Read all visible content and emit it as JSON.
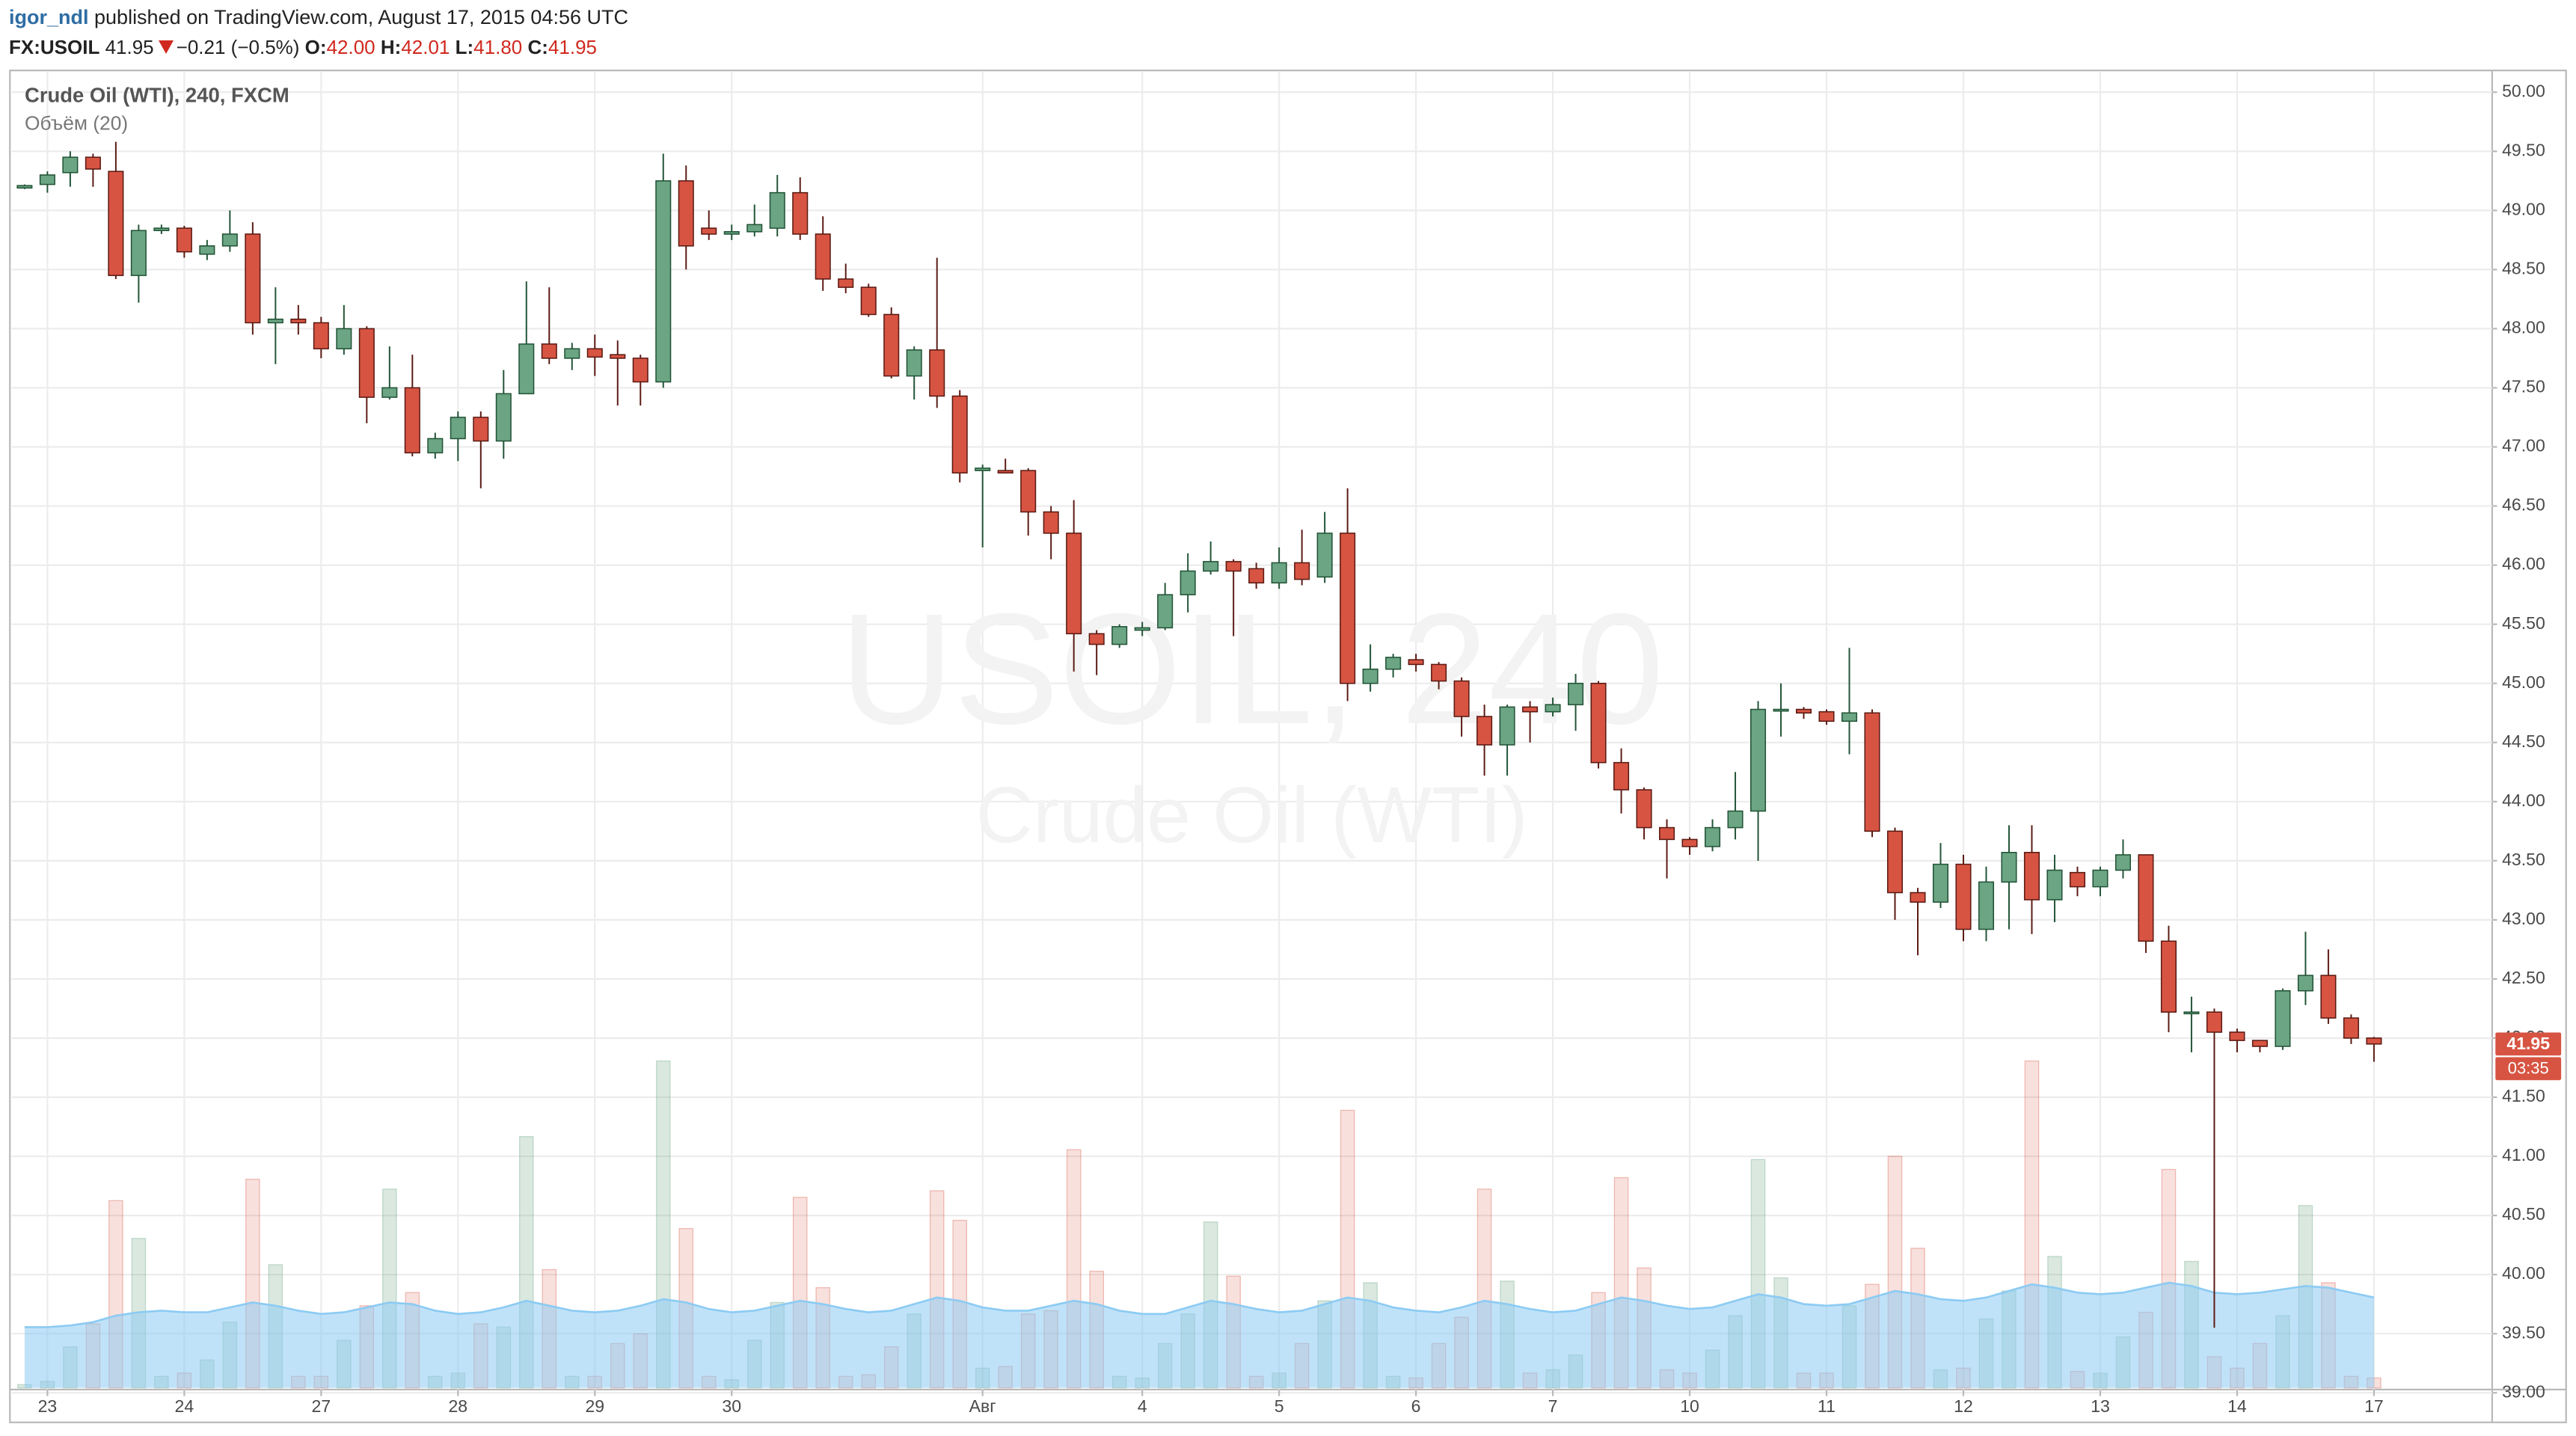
{
  "header": {
    "author": "igor_ndl",
    "published": "published on TradingView.com, August 17, 2015 04:56 UTC",
    "symbol": "FX:USOIL",
    "last": "41.95",
    "change": "−0.21 (−0.5%)",
    "ohlc": [
      {
        "label": "O:",
        "value": "42.00"
      },
      {
        "label": "H:",
        "value": "42.01"
      },
      {
        "label": "L:",
        "value": "41.80"
      },
      {
        "label": "C:",
        "value": "41.95"
      }
    ]
  },
  "chart_data": {
    "type": "candlestick",
    "title": "Crude Oil (WTI), 240, FXCM",
    "volume_label": "Объём (20)",
    "watermark": {
      "symbol": "USOIL, 240",
      "name": "Crude Oil (WTI)"
    },
    "categories": [
      null,
      "23",
      null,
      null,
      null,
      null,
      null,
      "24",
      null,
      null,
      null,
      null,
      null,
      "27",
      null,
      null,
      null,
      null,
      null,
      "28",
      null,
      null,
      null,
      null,
      null,
      "29",
      null,
      null,
      null,
      null,
      null,
      "30",
      null,
      null,
      null,
      null,
      null,
      null,
      null,
      null,
      null,
      null,
      "Авг",
      null,
      null,
      null,
      null,
      null,
      null,
      "4",
      null,
      null,
      null,
      null,
      null,
      "5",
      null,
      null,
      null,
      null,
      null,
      "6",
      null,
      null,
      null,
      null,
      null,
      "7",
      null,
      null,
      null,
      null,
      null,
      "10",
      null,
      null,
      null,
      null,
      null,
      "11",
      null,
      null,
      null,
      null,
      null,
      "12",
      null,
      null,
      null,
      null,
      null,
      "13",
      null,
      null,
      null,
      null,
      null,
      "14",
      null,
      null,
      null,
      null,
      null,
      "17"
    ],
    "open": [
      49.19,
      49.22,
      49.32,
      49.45,
      49.33,
      48.45,
      48.83,
      48.85,
      48.63,
      48.7,
      48.8,
      48.05,
      48.08,
      48.05,
      47.83,
      48.0,
      47.42,
      47.5,
      46.95,
      47.07,
      47.25,
      47.05,
      47.45,
      47.87,
      47.75,
      47.83,
      47.78,
      47.75,
      47.55,
      49.25,
      48.85,
      48.8,
      48.82,
      48.85,
      49.15,
      48.8,
      48.42,
      48.35,
      48.12,
      47.6,
      47.82,
      47.43,
      46.8,
      46.8,
      46.8,
      46.45,
      46.27,
      45.42,
      45.33,
      45.45,
      45.47,
      45.75,
      45.95,
      46.03,
      45.97,
      45.85,
      46.02,
      45.9,
      46.27,
      45.0,
      45.12,
      45.2,
      45.16,
      45.02,
      44.72,
      44.48,
      44.8,
      44.76,
      44.82,
      45.0,
      44.33,
      44.1,
      43.78,
      43.68,
      43.62,
      43.78,
      43.92,
      44.78,
      44.78,
      44.76,
      44.68,
      44.75,
      43.75,
      43.23,
      43.15,
      43.47,
      42.92,
      43.32,
      43.57,
      43.17,
      43.4,
      43.28,
      43.42,
      43.55,
      42.82,
      42.22,
      42.22,
      42.05,
      41.98,
      41.93,
      42.4,
      42.53,
      42.17,
      42.0
    ],
    "high": [
      49.22,
      49.33,
      49.5,
      49.48,
      49.58,
      48.88,
      48.88,
      48.87,
      48.75,
      49.0,
      48.9,
      48.35,
      48.2,
      48.1,
      48.2,
      48.02,
      47.85,
      47.78,
      47.12,
      47.3,
      47.3,
      47.65,
      48.4,
      48.35,
      47.88,
      47.95,
      47.9,
      47.78,
      49.48,
      49.38,
      49.0,
      48.88,
      49.05,
      49.3,
      49.28,
      48.95,
      48.55,
      48.38,
      48.18,
      47.85,
      48.6,
      47.48,
      46.85,
      46.9,
      46.82,
      46.5,
      46.55,
      45.45,
      45.5,
      45.52,
      45.85,
      46.1,
      46.2,
      46.05,
      46.02,
      46.15,
      46.3,
      46.45,
      46.65,
      45.33,
      45.25,
      45.25,
      45.18,
      45.05,
      44.82,
      44.82,
      44.85,
      44.88,
      45.08,
      45.02,
      44.45,
      44.12,
      43.85,
      43.7,
      43.85,
      44.25,
      44.85,
      45.0,
      44.8,
      44.78,
      45.3,
      44.78,
      43.78,
      43.27,
      43.65,
      43.55,
      43.45,
      43.8,
      43.8,
      43.55,
      43.45,
      43.45,
      43.68,
      43.55,
      42.95,
      42.35,
      42.25,
      42.08,
      41.98,
      42.42,
      42.9,
      42.75,
      42.2,
      42.01
    ],
    "low": [
      49.18,
      49.15,
      49.2,
      49.2,
      48.42,
      48.22,
      48.8,
      48.6,
      48.58,
      48.65,
      47.95,
      47.7,
      47.95,
      47.75,
      47.78,
      47.2,
      47.4,
      46.92,
      46.9,
      46.88,
      46.65,
      46.9,
      47.45,
      47.7,
      47.65,
      47.6,
      47.35,
      47.35,
      47.5,
      48.5,
      48.75,
      48.75,
      48.78,
      48.78,
      48.75,
      48.32,
      48.3,
      48.1,
      47.58,
      47.4,
      47.33,
      46.7,
      46.15,
      46.78,
      46.25,
      46.05,
      45.1,
      45.07,
      45.3,
      45.4,
      45.45,
      45.6,
      45.92,
      45.4,
      45.8,
      45.8,
      45.83,
      45.85,
      44.85,
      44.93,
      45.05,
      45.1,
      44.95,
      44.55,
      44.22,
      44.22,
      44.5,
      44.72,
      44.6,
      44.28,
      43.9,
      43.68,
      43.35,
      43.55,
      43.58,
      43.68,
      43.5,
      44.55,
      44.7,
      44.65,
      44.4,
      43.7,
      43.0,
      42.7,
      43.1,
      42.82,
      42.82,
      42.92,
      42.88,
      42.98,
      43.2,
      43.2,
      43.35,
      42.72,
      42.05,
      41.88,
      39.55,
      41.88,
      41.88,
      41.9,
      42.28,
      42.12,
      41.95,
      41.8
    ],
    "close": [
      49.21,
      49.3,
      49.45,
      49.35,
      48.45,
      48.83,
      48.85,
      48.65,
      48.7,
      48.8,
      48.05,
      48.08,
      48.05,
      47.83,
      48.0,
      47.42,
      47.5,
      46.95,
      47.07,
      47.25,
      47.05,
      47.45,
      47.87,
      47.75,
      47.83,
      47.76,
      47.75,
      47.55,
      49.25,
      48.7,
      48.8,
      48.82,
      48.88,
      49.15,
      48.8,
      48.42,
      48.35,
      48.12,
      47.6,
      47.82,
      47.43,
      46.78,
      46.82,
      46.78,
      46.45,
      46.27,
      45.42,
      45.33,
      45.48,
      45.47,
      45.75,
      45.95,
      46.03,
      45.95,
      45.85,
      46.02,
      45.88,
      46.27,
      45.0,
      45.12,
      45.22,
      45.16,
      45.02,
      44.72,
      44.48,
      44.8,
      44.76,
      44.82,
      45.0,
      44.33,
      44.1,
      43.78,
      43.68,
      43.62,
      43.78,
      43.92,
      44.78,
      44.78,
      44.75,
      44.68,
      44.75,
      43.75,
      43.23,
      43.15,
      43.47,
      42.92,
      43.32,
      43.57,
      43.17,
      43.42,
      43.28,
      43.42,
      43.55,
      42.82,
      42.22,
      42.22,
      42.05,
      41.98,
      41.93,
      42.4,
      42.53,
      42.17,
      42.0,
      41.95
    ],
    "volume": [
      2,
      4,
      25,
      39,
      114,
      91,
      7,
      9,
      17,
      40,
      127,
      75,
      7,
      7,
      29,
      50,
      121,
      58,
      7,
      9,
      39,
      37,
      153,
      72,
      7,
      7,
      27,
      33,
      199,
      97,
      7,
      5,
      29,
      52,
      116,
      61,
      7,
      8,
      25,
      45,
      120,
      102,
      12,
      13,
      45,
      47,
      145,
      71,
      7,
      6,
      27,
      45,
      101,
      68,
      7,
      9,
      27,
      53,
      169,
      64,
      7,
      6,
      27,
      43,
      121,
      65,
      9,
      11,
      20,
      58,
      128,
      73,
      11,
      9,
      23,
      44,
      139,
      67,
      9,
      9,
      50,
      63,
      141,
      85,
      11,
      12,
      42,
      59,
      199,
      80,
      10,
      9,
      31,
      46,
      133,
      77,
      19,
      12,
      27,
      44,
      111,
      64,
      7,
      6
    ],
    "volume_ma": [
      37,
      37,
      38,
      40,
      44,
      46,
      47,
      46,
      46,
      49,
      52,
      50,
      47,
      45,
      46,
      49,
      52,
      51,
      47,
      45,
      46,
      49,
      53,
      50,
      47,
      46,
      47,
      50,
      54,
      52,
      48,
      46,
      47,
      50,
      53,
      51,
      48,
      46,
      47,
      51,
      55,
      53,
      49,
      47,
      47,
      50,
      53,
      51,
      47,
      45,
      45,
      49,
      53,
      51,
      48,
      46,
      47,
      51,
      55,
      53,
      49,
      47,
      46,
      49,
      53,
      51,
      48,
      46,
      47,
      51,
      55,
      53,
      50,
      48,
      49,
      53,
      57,
      55,
      51,
      50,
      51,
      55,
      59,
      57,
      54,
      53,
      55,
      59,
      63,
      61,
      58,
      57,
      58,
      61,
      64,
      62,
      58,
      57,
      58,
      60,
      62,
      61,
      58,
      55
    ],
    "ylim": [
      39,
      50.17
    ],
    "yticks": [
      {
        "value": 39,
        "label": "39.00"
      },
      {
        "value": 39.5,
        "label": "39.50"
      },
      {
        "value": 40,
        "label": "40.00"
      },
      {
        "value": 40.5,
        "label": "40.50"
      },
      {
        "value": 41,
        "label": "41.00"
      },
      {
        "value": 41.5,
        "label": "41.50"
      },
      {
        "value": 42,
        "label": "42.00"
      },
      {
        "value": 42.5,
        "label": "42.50"
      },
      {
        "value": 43,
        "label": "43.00"
      },
      {
        "value": 43.5,
        "label": "43.50"
      },
      {
        "value": 44,
        "label": "44.00"
      },
      {
        "value": 44.5,
        "label": "44.50"
      },
      {
        "value": 45,
        "label": "45.00"
      },
      {
        "value": 45.5,
        "label": "45.50"
      },
      {
        "value": 46,
        "label": "46.00"
      },
      {
        "value": 46.5,
        "label": "46.50"
      },
      {
        "value": 47,
        "label": "47.00"
      },
      {
        "value": 47.5,
        "label": "47.50"
      },
      {
        "value": 48,
        "label": "48.00"
      },
      {
        "value": 48.5,
        "label": "48.50"
      },
      {
        "value": 49,
        "label": "49.00"
      },
      {
        "value": 49.5,
        "label": "49.50"
      },
      {
        "value": 50,
        "label": "50.00"
      }
    ],
    "grid": true,
    "last_price": {
      "value": 41.95,
      "label": "41.95"
    },
    "countdown": "03:35",
    "up_color": "#6ba583",
    "down_color": "#d75442",
    "up_border": "#225437",
    "down_border": "#5b1a13",
    "volume_ma_color": "#8ccbf3"
  }
}
